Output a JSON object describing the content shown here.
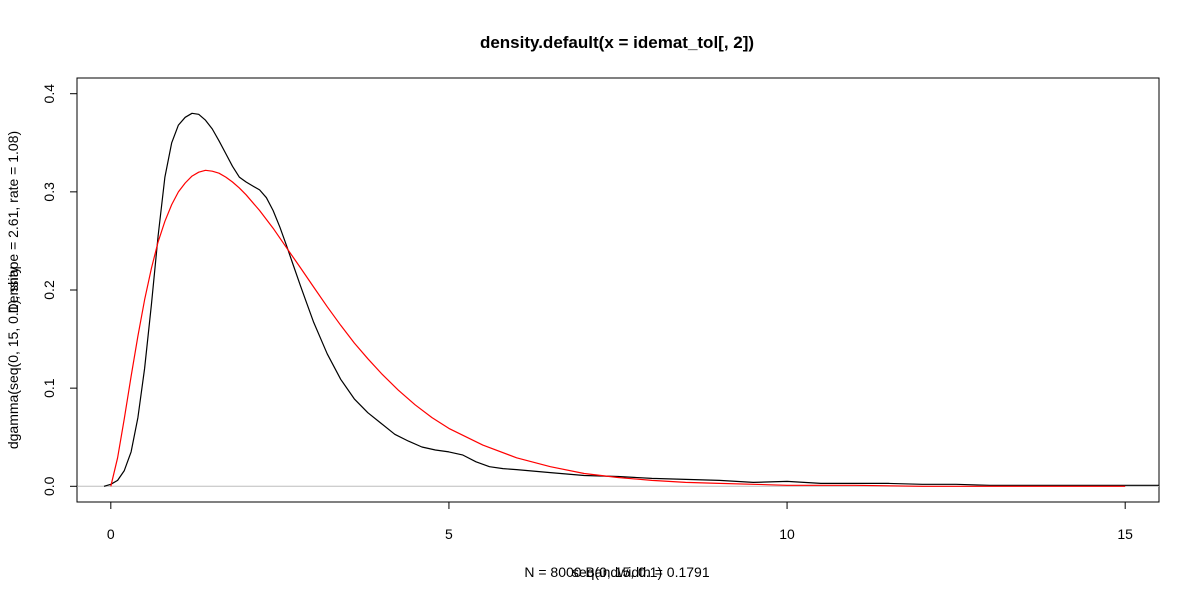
{
  "chart_data": {
    "type": "line",
    "title": "density.default(x = idemat_tol[, 2])",
    "xlabel_1": "N = 8000   Bandwidth = 0.1791",
    "xlabel_2": "seq(0, 15, 0.1)",
    "ylabel_1": "Density",
    "ylabel_2": "dgamma(seq(0, 15, 0.1), shape = 2.61, rate = 1.08)",
    "xlim": [
      -0.5,
      15.5
    ],
    "ylim": [
      -0.016,
      0.416
    ],
    "x_ticks": [
      0,
      5,
      10,
      15
    ],
    "y_ticks": [
      0.0,
      0.1,
      0.2,
      0.3,
      0.4
    ],
    "x_tick_labels": [
      "0",
      "5",
      "10",
      "15"
    ],
    "y_tick_labels": [
      "0.0",
      "0.1",
      "0.2",
      "0.3",
      "0.4"
    ],
    "baseline": 0,
    "grid": false,
    "colors": {
      "density": "#000000",
      "gamma": "#ff0000",
      "baseline": "#bebebe"
    },
    "series": [
      {
        "color": "#000000",
        "x": [
          -0.1,
          0.0,
          0.1,
          0.2,
          0.3,
          0.4,
          0.5,
          0.6,
          0.7,
          0.8,
          0.9,
          1.0,
          1.1,
          1.2,
          1.3,
          1.4,
          1.5,
          1.6,
          1.7,
          1.8,
          1.9,
          2.0,
          2.1,
          2.2,
          2.3,
          2.4,
          2.5,
          2.6,
          2.7,
          2.8,
          2.9,
          3.0,
          3.2,
          3.4,
          3.6,
          3.8,
          4.0,
          4.2,
          4.4,
          4.6,
          4.8,
          5.0,
          5.2,
          5.4,
          5.6,
          5.8,
          6.0,
          6.5,
          7.0,
          7.5,
          8.0,
          8.5,
          9.0,
          9.5,
          10.0,
          10.5,
          11.0,
          11.5,
          12.0,
          12.5,
          13.0,
          13.5,
          14.0,
          14.5,
          15.0,
          15.5
        ],
        "y": [
          0.0,
          0.002,
          0.006,
          0.016,
          0.035,
          0.07,
          0.12,
          0.185,
          0.255,
          0.315,
          0.35,
          0.368,
          0.376,
          0.38,
          0.379,
          0.373,
          0.364,
          0.352,
          0.339,
          0.326,
          0.315,
          0.31,
          0.306,
          0.302,
          0.294,
          0.281,
          0.264,
          0.245,
          0.225,
          0.205,
          0.186,
          0.167,
          0.135,
          0.109,
          0.089,
          0.075,
          0.064,
          0.053,
          0.046,
          0.04,
          0.037,
          0.035,
          0.032,
          0.025,
          0.02,
          0.018,
          0.017,
          0.014,
          0.011,
          0.01,
          0.008,
          0.007,
          0.006,
          0.004,
          0.005,
          0.003,
          0.003,
          0.003,
          0.002,
          0.002,
          0.001,
          0.001,
          0.001,
          0.001,
          0.001,
          0.001
        ]
      },
      {
        "color": "#ff0000",
        "x": [
          0.0,
          0.1,
          0.2,
          0.3,
          0.4,
          0.5,
          0.6,
          0.7,
          0.8,
          0.9,
          1.0,
          1.1,
          1.2,
          1.3,
          1.4,
          1.5,
          1.6,
          1.7,
          1.8,
          1.9,
          2.0,
          2.2,
          2.4,
          2.6,
          2.8,
          3.0,
          3.2,
          3.4,
          3.6,
          3.8,
          4.0,
          4.25,
          4.5,
          4.75,
          5.0,
          5.5,
          6.0,
          6.5,
          7.0,
          7.5,
          8.0,
          8.5,
          9.0,
          9.5,
          10.0,
          11.0,
          12.0,
          13.0,
          14.0,
          15.0
        ],
        "y": [
          0.0,
          0.029,
          0.069,
          0.112,
          0.153,
          0.19,
          0.222,
          0.249,
          0.27,
          0.287,
          0.3,
          0.309,
          0.316,
          0.32,
          0.322,
          0.321,
          0.319,
          0.315,
          0.31,
          0.304,
          0.297,
          0.281,
          0.263,
          0.243,
          0.223,
          0.203,
          0.183,
          0.164,
          0.146,
          0.13,
          0.115,
          0.098,
          0.083,
          0.07,
          0.059,
          0.042,
          0.029,
          0.02,
          0.013,
          0.009,
          0.006,
          0.004,
          0.003,
          0.002,
          0.001,
          0.001,
          0.0,
          0.0,
          0.0,
          0.0
        ]
      }
    ]
  }
}
